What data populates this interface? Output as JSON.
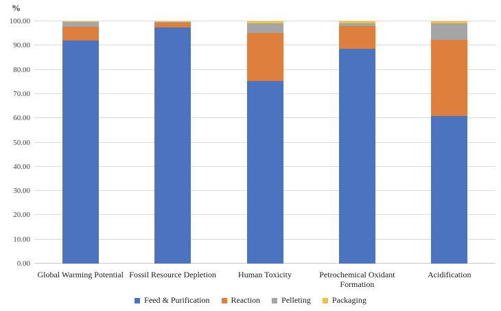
{
  "chart_data": {
    "type": "bar",
    "stacked": true,
    "title": "",
    "ylabel": "%",
    "xlabel": "",
    "grid": true,
    "legend_position": "bottom",
    "ylim": [
      0,
      100
    ],
    "ytick_step": 10,
    "ytick_labels": [
      "0.00",
      "10.00",
      "20.00",
      "30.00",
      "40.00",
      "50.00",
      "60.00",
      "70.00",
      "80.00",
      "90.00",
      "100.00"
    ],
    "categories": [
      "Global Warming Potential",
      "Fossil Resource Depletion",
      "Human Toxicity",
      "Petrochemical Oxidant Formation",
      "Acidification"
    ],
    "series": [
      {
        "name": "Feed & Purification",
        "color": "#4b73c0",
        "values": [
          92.0,
          97.5,
          75.5,
          88.7,
          60.8
        ]
      },
      {
        "name": "Reaction",
        "color": "#df7f3e",
        "values": [
          5.7,
          2.0,
          19.7,
          9.3,
          31.5
        ]
      },
      {
        "name": "Pelleting",
        "color": "#a5a5a5",
        "values": [
          2.0,
          0.2,
          3.9,
          1.2,
          6.9
        ]
      },
      {
        "name": "Packaging",
        "color": "#f2c142",
        "values": [
          0.3,
          0.3,
          0.9,
          0.8,
          0.8
        ]
      }
    ]
  }
}
